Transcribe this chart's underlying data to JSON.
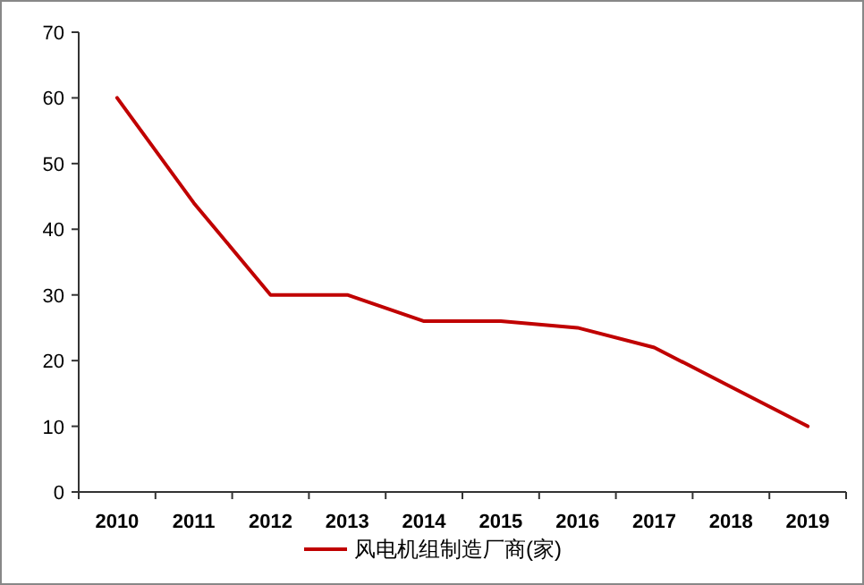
{
  "chart_data": {
    "type": "line",
    "categories": [
      "2010",
      "2011",
      "2012",
      "2013",
      "2014",
      "2015",
      "2016",
      "2017",
      "2018",
      "2019"
    ],
    "series": [
      {
        "name": "风电机组制造厂商(家)",
        "color": "#c00000",
        "values": [
          60,
          44,
          30,
          30,
          26,
          26,
          25,
          22,
          16,
          10
        ]
      }
    ],
    "ylim": [
      0,
      70
    ],
    "yticks": [
      0,
      10,
      20,
      30,
      40,
      50,
      60,
      70
    ],
    "grid": false,
    "legend": "bottom",
    "marker": "none",
    "line_style": "solid"
  }
}
